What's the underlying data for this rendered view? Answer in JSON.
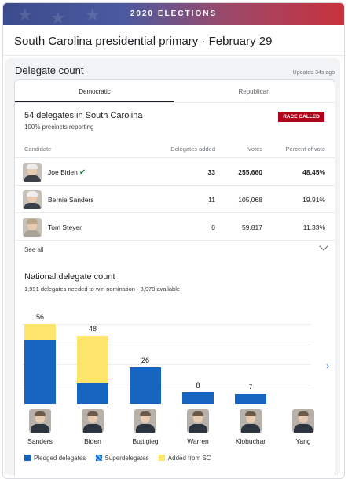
{
  "banner": {
    "title": "2020 ELECTIONS"
  },
  "page_title": "South Carolina presidential primary · February 29",
  "delegate_section": {
    "title": "Delegate count",
    "updated": "Updated 34s ago",
    "tabs": [
      {
        "label": "Democratic"
      },
      {
        "label": "Republican"
      }
    ],
    "state_title": "54 delegates in South Carolina",
    "precincts": "100% precincts reporting",
    "badge": "RACE CALLED",
    "columns": {
      "candidate": "Candidate",
      "delegates": "Delegates added",
      "votes": "Votes",
      "percent": "Percent of vote"
    },
    "rows": [
      {
        "name": "Joe Biden",
        "delegates": "33",
        "votes": "255,660",
        "percent": "48.45%",
        "winner": true
      },
      {
        "name": "Bernie Sanders",
        "delegates": "11",
        "votes": "105,068",
        "percent": "19.91%",
        "winner": false
      },
      {
        "name": "Tom Steyer",
        "delegates": "0",
        "votes": "59,817",
        "percent": "11.33%",
        "winner": false
      }
    ],
    "see_all": "See all"
  },
  "national": {
    "title": "National delegate count",
    "subtitle": "1,991 delegates needed to win nomination · 3,979 available",
    "legend": [
      "Pledged delegates",
      "Superdelegates",
      "Added from SC"
    ]
  },
  "colors": {
    "pledged": "#1565c0",
    "added_sc": "#fde66b",
    "called": "#b3001b"
  },
  "chart_data": {
    "type": "bar",
    "stacked": true,
    "categories": [
      "Sanders",
      "Biden",
      "Buttigieg",
      "Warren",
      "Klobuchar",
      "Yang"
    ],
    "totals": [
      56,
      48,
      26,
      8,
      7,
      null
    ],
    "series": [
      {
        "name": "Pledged delegates",
        "values": [
          45,
          15,
          26,
          8,
          7,
          null
        ]
      },
      {
        "name": "Superdelegates",
        "values": [
          0,
          0,
          0,
          0,
          0,
          null
        ]
      },
      {
        "name": "Added from SC",
        "values": [
          11,
          33,
          0,
          0,
          0,
          null
        ]
      }
    ],
    "ylim": [
      0,
      60
    ],
    "grid": true,
    "legend_position": "bottom"
  }
}
